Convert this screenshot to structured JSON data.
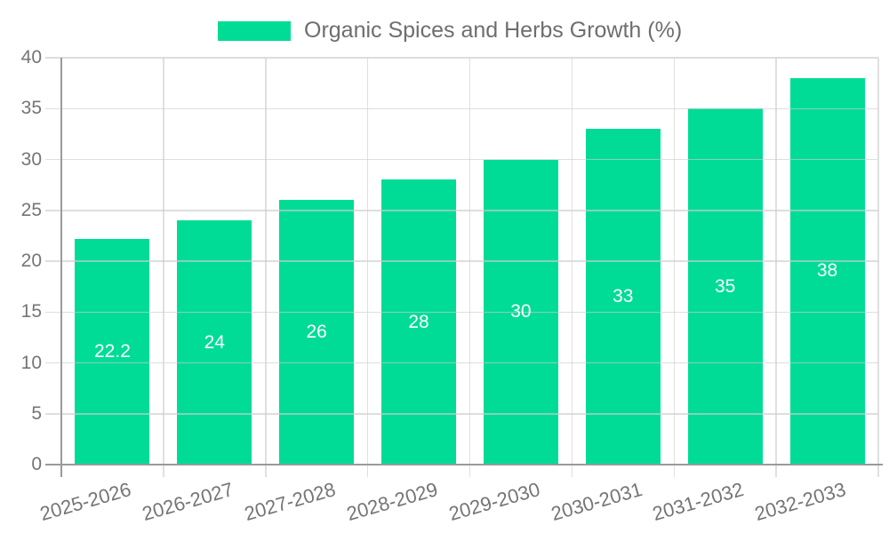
{
  "legend": {
    "label": "Organic Spices and Herbs Growth (%)"
  },
  "chart_data": {
    "type": "bar",
    "title": "Organic Spices and Herbs Growth (%)",
    "categories": [
      "2025-2026",
      "2026-2027",
      "2027-2028",
      "2028-2029",
      "2029-2030",
      "2030-2031",
      "2031-2032",
      "2032-2033"
    ],
    "values": [
      22.2,
      24,
      26,
      28,
      30,
      33,
      35,
      38
    ],
    "bar_labels": [
      "22.2",
      "24",
      "26",
      "28",
      "30",
      "33",
      "35",
      "38"
    ],
    "y_ticks": [
      0,
      5,
      10,
      15,
      20,
      25,
      30,
      35,
      40
    ],
    "ylim": [
      0,
      40
    ],
    "xlabel": "",
    "ylabel": "",
    "grid": true,
    "legend_position": "top",
    "bar_color": "#00DC96",
    "value_label_color": "#ffffff",
    "axis_text_color": "#757575",
    "legend_text_color": "#6e6e6e"
  }
}
